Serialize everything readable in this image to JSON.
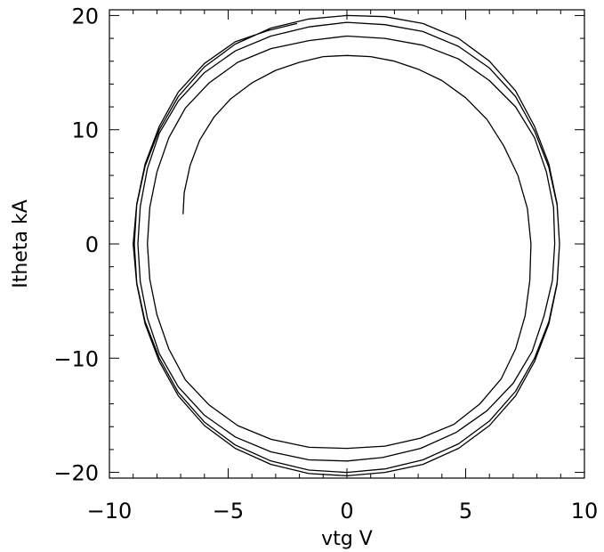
{
  "chart_data": {
    "type": "line",
    "title": "",
    "xlabel": "vtg V",
    "ylabel": "Itheta kA",
    "xlim": [
      -10,
      10
    ],
    "ylim": [
      -20.5,
      20.5
    ],
    "xticks": [
      -10,
      -5,
      0,
      5,
      10
    ],
    "xtick_labels": [
      "−10",
      "−5",
      "0",
      "5",
      "10"
    ],
    "yticks": [
      -20,
      -10,
      0,
      10,
      20
    ],
    "ytick_labels": [
      "−20",
      "−10",
      "0",
      "10",
      "20"
    ],
    "grid": false,
    "series": [
      {
        "points": [
          [
            -6.9,
            2.6
          ],
          [
            -6.85,
            4.5
          ],
          [
            -6.6,
            6.9
          ],
          [
            -6.2,
            9.1
          ],
          [
            -5.6,
            11.1
          ],
          [
            -4.9,
            12.7
          ],
          [
            -4.0,
            14.1
          ],
          [
            -3.0,
            15.2
          ],
          [
            -2.0,
            15.9
          ],
          [
            -1.0,
            16.4
          ],
          [
            0.0,
            16.5
          ],
          [
            1.0,
            16.4
          ],
          [
            2.0,
            16.0
          ],
          [
            3.0,
            15.3
          ],
          [
            4.0,
            14.3
          ],
          [
            5.0,
            12.8
          ],
          [
            5.9,
            10.9
          ],
          [
            6.6,
            8.6
          ],
          [
            7.2,
            6.0
          ],
          [
            7.6,
            3.1
          ],
          [
            7.75,
            0.0
          ],
          [
            7.7,
            -3.2
          ],
          [
            7.5,
            -6.3
          ],
          [
            7.1,
            -9.2
          ],
          [
            6.5,
            -11.8
          ],
          [
            5.6,
            -14.0
          ],
          [
            4.5,
            -15.8
          ],
          [
            3.1,
            -17.0
          ],
          [
            1.6,
            -17.7
          ],
          [
            0.0,
            -17.9
          ],
          [
            -1.6,
            -17.8
          ],
          [
            -3.2,
            -17.1
          ],
          [
            -4.6,
            -15.9
          ],
          [
            -5.8,
            -14.1
          ],
          [
            -6.8,
            -11.9
          ],
          [
            -7.5,
            -9.2
          ],
          [
            -8.0,
            -6.2
          ],
          [
            -8.3,
            -3.1
          ],
          [
            -8.4,
            0.0
          ],
          [
            -8.3,
            3.2
          ],
          [
            -8.0,
            6.3
          ],
          [
            -7.5,
            9.3
          ],
          [
            -6.8,
            11.9
          ],
          [
            -5.8,
            14.1
          ],
          [
            -4.6,
            15.9
          ],
          [
            -3.2,
            17.1
          ],
          [
            -1.6,
            17.8
          ],
          [
            0.0,
            18.2
          ],
          [
            1.6,
            18.0
          ],
          [
            3.2,
            17.4
          ],
          [
            4.7,
            16.2
          ],
          [
            6.0,
            14.3
          ],
          [
            7.1,
            12.0
          ],
          [
            7.9,
            9.3
          ],
          [
            8.4,
            6.3
          ],
          [
            8.7,
            3.2
          ],
          [
            8.75,
            0.0
          ],
          [
            8.65,
            -3.2
          ],
          [
            8.3,
            -6.3
          ],
          [
            7.8,
            -9.4
          ],
          [
            7.0,
            -12.2
          ],
          [
            5.9,
            -14.6
          ],
          [
            4.6,
            -16.5
          ],
          [
            3.1,
            -17.9
          ],
          [
            1.5,
            -18.7
          ],
          [
            0.0,
            -19.0
          ],
          [
            -1.6,
            -18.9
          ],
          [
            -3.2,
            -18.2
          ],
          [
            -4.7,
            -16.9
          ],
          [
            -6.0,
            -15.0
          ],
          [
            -7.1,
            -12.5
          ],
          [
            -7.9,
            -9.6
          ],
          [
            -8.4,
            -6.5
          ],
          [
            -8.7,
            -3.3
          ],
          [
            -8.8,
            0.0
          ],
          [
            -8.7,
            3.3
          ],
          [
            -8.4,
            6.6
          ],
          [
            -7.9,
            9.7
          ],
          [
            -7.1,
            12.5
          ],
          [
            -6.0,
            15.0
          ],
          [
            -4.7,
            16.9
          ],
          [
            -3.2,
            18.2
          ],
          [
            -1.6,
            19.0
          ],
          [
            0.0,
            19.4
          ],
          [
            1.6,
            19.2
          ],
          [
            3.2,
            18.6
          ],
          [
            4.7,
            17.3
          ],
          [
            6.0,
            15.4
          ],
          [
            7.1,
            12.9
          ],
          [
            7.9,
            9.9
          ],
          [
            8.5,
            6.7
          ],
          [
            8.85,
            3.4
          ],
          [
            8.95,
            0.0
          ],
          [
            8.85,
            -3.4
          ],
          [
            8.5,
            -6.8
          ],
          [
            7.9,
            -10.0
          ],
          [
            7.1,
            -12.9
          ],
          [
            6.0,
            -15.5
          ],
          [
            4.7,
            -17.5
          ],
          [
            3.2,
            -18.9
          ],
          [
            1.6,
            -19.7
          ],
          [
            0.0,
            -20.0
          ],
          [
            -1.6,
            -19.8
          ],
          [
            -3.2,
            -19.0
          ],
          [
            -4.7,
            -17.6
          ],
          [
            -6.0,
            -15.6
          ],
          [
            -7.1,
            -13.0
          ],
          [
            -7.9,
            -10.0
          ],
          [
            -8.5,
            -6.8
          ],
          [
            -8.85,
            -3.4
          ],
          [
            -8.95,
            0.0
          ],
          [
            -8.85,
            3.4
          ],
          [
            -8.5,
            6.8
          ],
          [
            -7.9,
            10.0
          ],
          [
            -7.1,
            12.9
          ],
          [
            -6.0,
            15.5
          ],
          [
            -4.7,
            17.5
          ],
          [
            -3.2,
            18.9
          ],
          [
            -1.6,
            19.7
          ],
          [
            0.0,
            20.0
          ],
          [
            1.6,
            19.9
          ],
          [
            3.2,
            19.3
          ],
          [
            4.7,
            18.0
          ],
          [
            6.0,
            16.0
          ],
          [
            7.1,
            13.4
          ],
          [
            7.9,
            10.3
          ],
          [
            8.5,
            7.0
          ],
          [
            8.85,
            3.5
          ],
          [
            8.95,
            0.0
          ],
          [
            8.85,
            -3.5
          ],
          [
            8.5,
            -7.0
          ],
          [
            7.9,
            -10.3
          ],
          [
            7.1,
            -13.3
          ],
          [
            6.0,
            -15.9
          ],
          [
            4.7,
            -17.9
          ],
          [
            3.2,
            -19.3
          ],
          [
            1.6,
            -20.0
          ],
          [
            0.0,
            -20.3
          ],
          [
            -1.6,
            -20.1
          ],
          [
            -3.2,
            -19.3
          ],
          [
            -4.7,
            -17.9
          ],
          [
            -6.0,
            -15.9
          ],
          [
            -7.1,
            -13.3
          ],
          [
            -7.9,
            -10.3
          ],
          [
            -8.5,
            -7.0
          ],
          [
            -8.85,
            -3.5
          ],
          [
            -9.0,
            0.0
          ],
          [
            -8.85,
            3.5
          ],
          [
            -8.5,
            7.0
          ],
          [
            -7.9,
            10.3
          ],
          [
            -7.1,
            13.3
          ],
          [
            -6.0,
            15.8
          ],
          [
            -4.7,
            17.7
          ],
          [
            -3.3,
            18.7
          ],
          [
            -2.1,
            19.3
          ]
        ]
      }
    ]
  }
}
